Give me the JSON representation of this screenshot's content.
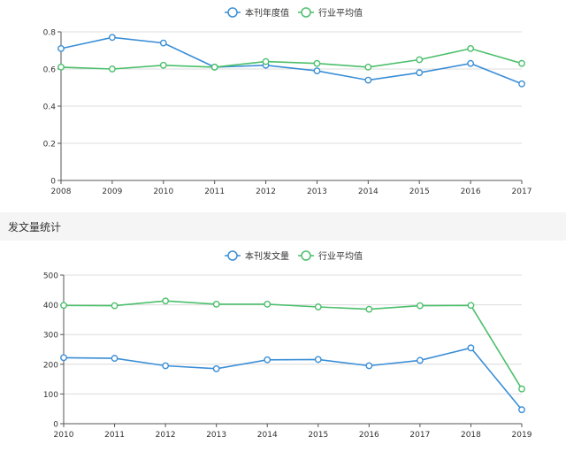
{
  "section": {
    "title": "发文量统计"
  },
  "chart_data": [
    {
      "type": "line",
      "categories": [
        "2008",
        "2009",
        "2010",
        "2011",
        "2012",
        "2013",
        "2014",
        "2015",
        "2016",
        "2017"
      ],
      "series": [
        {
          "name": "本刊年度值",
          "color": "#3a8ed6",
          "values": [
            0.71,
            0.77,
            0.74,
            0.61,
            0.62,
            0.59,
            0.54,
            0.58,
            0.63,
            0.52
          ]
        },
        {
          "name": "行业平均值",
          "color": "#4bbf6b",
          "values": [
            0.61,
            0.6,
            0.62,
            0.61,
            0.64,
            0.63,
            0.61,
            0.65,
            0.71,
            0.63
          ]
        }
      ],
      "ylim": [
        0,
        0.8
      ],
      "yticks": [
        "0",
        "0.2",
        "0.4",
        "0.6",
        "0.8"
      ],
      "grid": true,
      "legend": "top-center"
    },
    {
      "type": "line",
      "categories": [
        "2010",
        "2011",
        "2012",
        "2013",
        "2014",
        "2015",
        "2016",
        "2017",
        "2018",
        "2019"
      ],
      "series": [
        {
          "name": "本刊发文量",
          "color": "#3a8ed6",
          "values": [
            222,
            220,
            195,
            185,
            215,
            216,
            195,
            213,
            255,
            47
          ]
        },
        {
          "name": "行业平均值",
          "color": "#4bbf6b",
          "values": [
            398,
            397,
            413,
            402,
            402,
            393,
            385,
            397,
            398,
            117
          ]
        }
      ],
      "ylim": [
        0,
        500
      ],
      "yticks": [
        "0",
        "100",
        "200",
        "300",
        "400",
        "500"
      ],
      "grid": true,
      "legend": "top-center"
    }
  ]
}
